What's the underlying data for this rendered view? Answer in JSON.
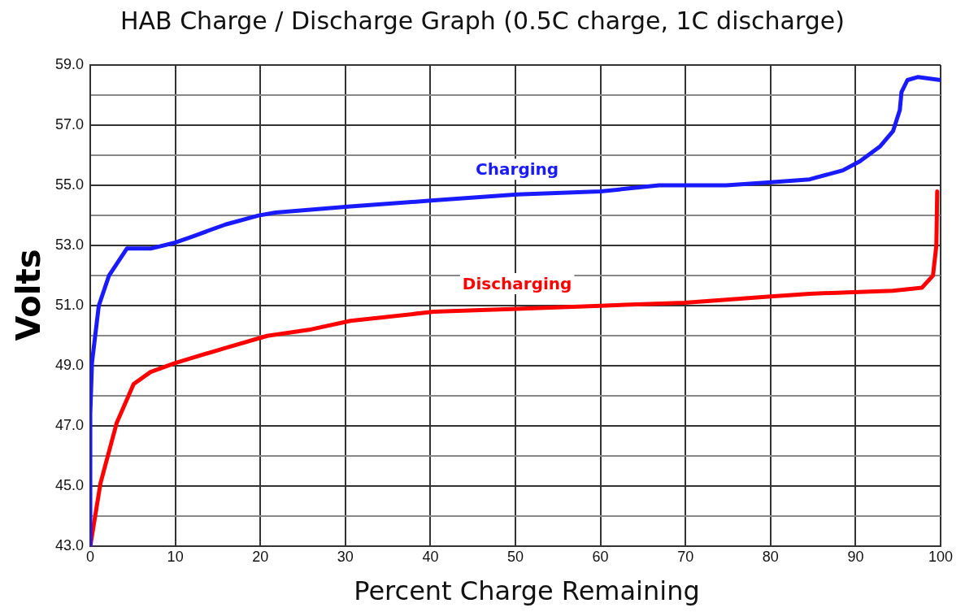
{
  "chart_data": {
    "type": "line",
    "title": "HAB Charge / Discharge Graph (0.5C charge, 1C discharge)",
    "xlabel": "Percent Charge Remaining",
    "ylabel": "Volts",
    "xlim": [
      0,
      100
    ],
    "xticks": [
      0,
      10,
      20,
      30,
      40,
      50,
      60,
      70,
      80,
      90,
      100
    ],
    "ylim": [
      43,
      59
    ],
    "yticks": [
      {
        "value": 43,
        "label": "43.0"
      },
      {
        "value": 44,
        "label": null
      },
      {
        "value": 45,
        "label": "45.0"
      },
      {
        "value": 46,
        "label": null
      },
      {
        "value": 47,
        "label": "47.0"
      },
      {
        "value": 48,
        "label": null
      },
      {
        "value": 49,
        "label": "49.0"
      },
      {
        "value": 50,
        "label": null
      },
      {
        "value": 51,
        "label": "51.0"
      },
      {
        "value": 52,
        "label": null
      },
      {
        "value": 53,
        "label": "53.0"
      },
      {
        "value": 54,
        "label": null
      },
      {
        "value": 55,
        "label": "55.0"
      },
      {
        "value": 56,
        "label": null
      },
      {
        "value": 57,
        "label": "57.0"
      },
      {
        "value": 58,
        "label": null
      },
      {
        "value": 59,
        "label": "59.0"
      }
    ],
    "grid": true,
    "legend": false,
    "marker": "none",
    "line_style": "solid",
    "series": [
      {
        "name": "Charging",
        "color": "#1a1aff",
        "x": [
          0,
          0,
          0.2,
          1.0,
          2.2,
          4.3,
          7.1,
          10,
          12,
          15.9,
          19.8,
          21.8,
          30.6,
          40.4,
          50.2,
          60,
          66.9,
          74.8,
          79.7,
          84.6,
          88.5,
          90.5,
          92.9,
          94.4,
          95.2,
          95.4,
          96.1,
          97.3,
          100
        ],
        "values": [
          43,
          47.4,
          49.1,
          51.0,
          52.0,
          52.9,
          52.9,
          53.1,
          53.3,
          53.7,
          54.0,
          54.1,
          54.3,
          54.5,
          54.7,
          54.8,
          55.0,
          55.0,
          55.1,
          55.2,
          55.5,
          55.8,
          56.3,
          56.8,
          57.5,
          58.1,
          58.5,
          58.6,
          58.5
        ]
      },
      {
        "name": "Discharging",
        "color": "#ff0000",
        "x": [
          0,
          1.2,
          3.1,
          5.1,
          7.1,
          10,
          15.9,
          20.8,
          25.7,
          30.6,
          40.4,
          50.2,
          60,
          69.9,
          79.7,
          84.6,
          94.4,
          97.8,
          99.1,
          99.5,
          99.6
        ],
        "values": [
          43,
          45.1,
          47.1,
          48.4,
          48.8,
          49.1,
          49.6,
          50.0,
          50.2,
          50.5,
          50.8,
          50.9,
          51.0,
          51.1,
          51.3,
          51.4,
          51.5,
          51.6,
          52.0,
          53.0,
          54.8
        ]
      }
    ]
  }
}
